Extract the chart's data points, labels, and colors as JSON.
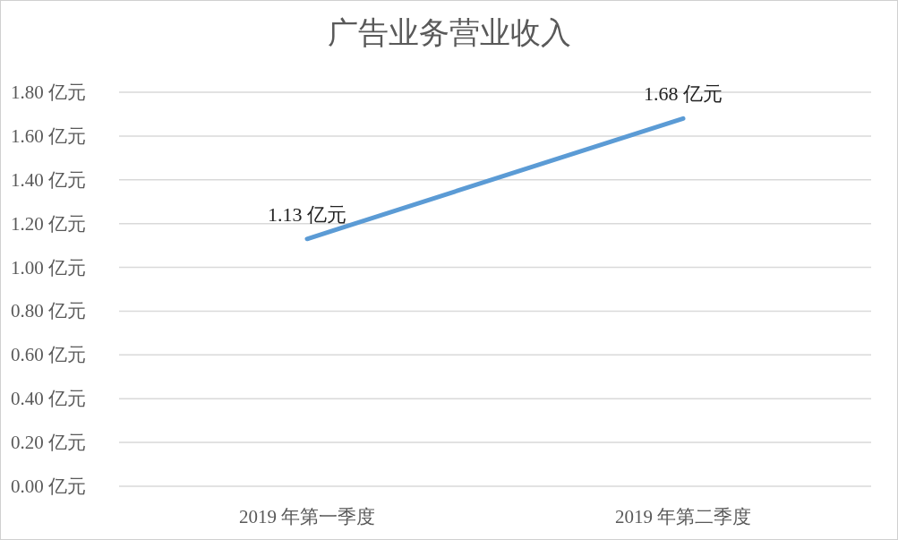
{
  "chart_data": {
    "type": "line",
    "title": "广告业务营业收入",
    "categories": [
      "2019 年第一季度",
      "2019 年第二季度"
    ],
    "series": [
      {
        "color": "#5b9bd5",
        "values": [
          1.13,
          1.68
        ],
        "value_labels": [
          "1.13 亿元",
          "1.68 亿元"
        ]
      }
    ],
    "ylim": [
      0,
      1.8
    ],
    "yticks": [
      {
        "value": 0,
        "label": "0.00 亿元"
      },
      {
        "value": 0.2,
        "label": "0.20 亿元"
      },
      {
        "value": 0.4,
        "label": "0.40 亿元"
      },
      {
        "value": 0.6,
        "label": "0.60 亿元"
      },
      {
        "value": 0.8,
        "label": "0.80 亿元"
      },
      {
        "value": 1,
        "label": "1.00 亿元"
      },
      {
        "value": 1.2,
        "label": "1.20 亿元"
      },
      {
        "value": 1.4,
        "label": "1.40 亿元"
      },
      {
        "value": 1.6,
        "label": "1.60 亿元"
      },
      {
        "value": 1.8,
        "label": "1.80 亿元"
      }
    ],
    "grid": "y",
    "marker": "none",
    "line_style": "solid"
  }
}
